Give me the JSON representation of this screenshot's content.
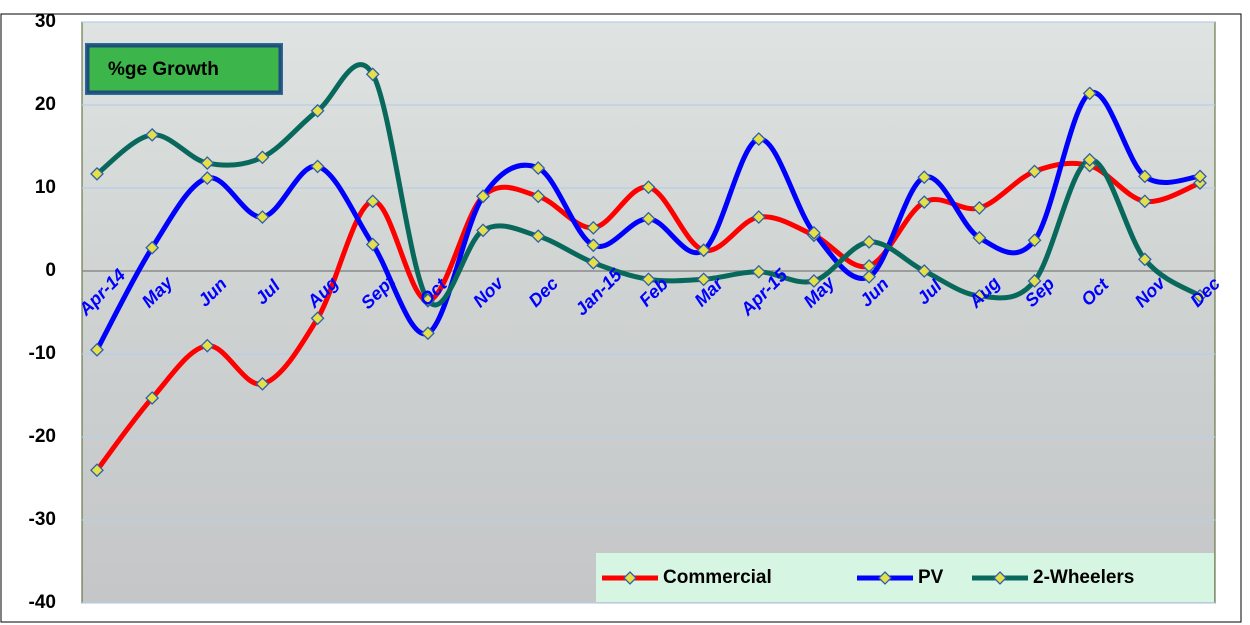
{
  "chart_data": {
    "type": "line",
    "annotation": "%ge Growth",
    "categories": [
      "Apr-14",
      "May",
      "Jun",
      "Jul",
      "Aug",
      "Sept",
      "Oct",
      "Nov",
      "Dec",
      "Jan-15",
      "Feb",
      "Mar",
      "Apr-15",
      "May",
      "Jun",
      "Jul",
      "Aug",
      "Sep",
      "Oct",
      "Nov",
      "Dec"
    ],
    "series": [
      {
        "name": "Commercial",
        "color": "#ff0000",
        "values": [
          -24,
          -15.3,
          -9,
          -13.6,
          -5.7,
          8.4,
          -3.6,
          9,
          9,
          5.2,
          10.1,
          2.5,
          6.5,
          4.3,
          0.6,
          8.3,
          7.6,
          12,
          12.7,
          8.4,
          10.6
        ]
      },
      {
        "name": "PV",
        "color": "#0000ff",
        "values": [
          -9.5,
          2.8,
          11.2,
          6.5,
          12.6,
          3.2,
          -7.5,
          9,
          12.4,
          3.1,
          6.3,
          2.5,
          15.9,
          4.6,
          -0.7,
          11.3,
          4,
          3.7,
          21.4,
          11.4,
          11.4
        ]
      },
      {
        "name": "2-Wheelers",
        "color": "#08685c",
        "values": [
          11.7,
          16.4,
          13,
          13.7,
          19.3,
          23.7,
          -3.5,
          4.9,
          4.2,
          1,
          -1,
          -1,
          -0.1,
          -1.2,
          3.5,
          0,
          -3,
          -1.2,
          13.4,
          1.4,
          -3
        ]
      }
    ],
    "ylim": [
      -40,
      30
    ],
    "yticks": [
      -40,
      -30,
      -20,
      -10,
      0,
      10,
      20,
      30
    ],
    "grid": true,
    "legend": "bottom-right"
  }
}
